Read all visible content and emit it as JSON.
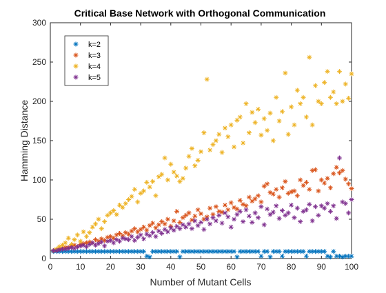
{
  "chart_data": {
    "type": "scatter",
    "title": "Critical Base Network with Orthogonal Communication",
    "xlabel": "Number of Mutant Cells",
    "ylabel": "Hamming Distance",
    "xlim": [
      0,
      100
    ],
    "ylim": [
      0,
      300
    ],
    "xticks": [
      "0",
      "10",
      "20",
      "30",
      "40",
      "50",
      "60",
      "70",
      "80",
      "90",
      "100"
    ],
    "yticks": [
      "0",
      "50",
      "100",
      "150",
      "200",
      "250",
      "300"
    ],
    "marker": "asterisk",
    "grid": false,
    "legend_position": "top-left",
    "series": [
      {
        "name": "k=2",
        "color": "#0072BD",
        "x": [
          1,
          2,
          3,
          4,
          5,
          6,
          7,
          8,
          9,
          10,
          11,
          12,
          13,
          14,
          15,
          16,
          17,
          18,
          19,
          20,
          21,
          22,
          23,
          24,
          25,
          26,
          27,
          28,
          29,
          30,
          31,
          32,
          33,
          34,
          35,
          36,
          37,
          38,
          39,
          40,
          41,
          42,
          43,
          44,
          45,
          46,
          47,
          48,
          49,
          50,
          51,
          52,
          53,
          54,
          55,
          56,
          57,
          58,
          59,
          60,
          61,
          62,
          63,
          64,
          65,
          66,
          67,
          68,
          69,
          70,
          71,
          72,
          73,
          74,
          75,
          76,
          77,
          78,
          79,
          80,
          81,
          82,
          83,
          84,
          85,
          86,
          87,
          88,
          89,
          90,
          91,
          92,
          93,
          94,
          95,
          96,
          97,
          98,
          99,
          100
        ],
        "y": [
          9,
          9,
          9,
          9,
          9,
          9,
          9,
          9,
          9,
          9,
          9,
          9,
          9,
          9,
          9,
          9,
          9,
          9,
          9,
          9,
          9,
          9,
          9,
          9,
          9,
          9,
          9,
          9,
          9,
          9,
          9,
          3,
          2,
          9,
          9,
          9,
          9,
          9,
          9,
          9,
          9,
          9,
          2,
          9,
          9,
          9,
          9,
          9,
          9,
          9,
          9,
          9,
          9,
          9,
          9,
          9,
          9,
          9,
          9,
          9,
          9,
          2,
          9,
          9,
          9,
          9,
          9,
          9,
          9,
          3,
          9,
          9,
          2,
          9,
          9,
          9,
          3,
          9,
          9,
          9,
          9,
          9,
          9,
          9,
          3,
          9,
          9,
          9,
          9,
          9,
          9,
          3,
          2,
          9,
          3,
          3,
          2,
          3,
          3,
          3
        ]
      },
      {
        "name": "k=3",
        "color": "#D95319",
        "x": [
          1,
          2,
          3,
          4,
          5,
          6,
          7,
          8,
          9,
          10,
          11,
          12,
          13,
          14,
          15,
          16,
          17,
          18,
          19,
          20,
          21,
          22,
          23,
          24,
          25,
          26,
          27,
          28,
          29,
          30,
          31,
          32,
          33,
          34,
          35,
          36,
          37,
          38,
          39,
          40,
          41,
          42,
          43,
          44,
          45,
          46,
          47,
          48,
          49,
          50,
          51,
          52,
          53,
          54,
          55,
          56,
          57,
          58,
          59,
          60,
          61,
          62,
          63,
          64,
          65,
          66,
          67,
          68,
          69,
          70,
          71,
          72,
          73,
          74,
          75,
          76,
          77,
          78,
          79,
          80,
          81,
          82,
          83,
          84,
          85,
          86,
          87,
          88,
          89,
          90,
          91,
          92,
          93,
          94,
          95,
          96,
          97,
          98,
          99,
          100
        ],
        "y": [
          10,
          11,
          12,
          13,
          14,
          14,
          16,
          17,
          15,
          18,
          19,
          20,
          21,
          20,
          24,
          22,
          25,
          23,
          27,
          28,
          26,
          30,
          32,
          29,
          33,
          31,
          35,
          38,
          34,
          37,
          40,
          36,
          42,
          45,
          39,
          43,
          47,
          44,
          50,
          41,
          48,
          60,
          46,
          52,
          55,
          58,
          49,
          54,
          62,
          57,
          50,
          53,
          64,
          56,
          66,
          60,
          59,
          68,
          62,
          71,
          65,
          63,
          74,
          69,
          67,
          78,
          73,
          76,
          80,
          72,
          92,
          95,
          84,
          82,
          88,
          78,
          90,
          98,
          83,
          85,
          86,
          80,
          100,
          93,
          97,
          88,
          112,
          113,
          86,
          100,
          96,
          102,
          90,
          108,
          116,
          109,
          112,
          101,
          95,
          89
        ]
      },
      {
        "name": "k=4",
        "color": "#EDB120",
        "x": [
          1,
          2,
          3,
          4,
          5,
          6,
          7,
          8,
          9,
          10,
          11,
          12,
          13,
          14,
          15,
          16,
          17,
          18,
          19,
          20,
          21,
          22,
          23,
          24,
          25,
          26,
          27,
          28,
          29,
          30,
          31,
          32,
          33,
          34,
          35,
          36,
          37,
          38,
          39,
          40,
          41,
          42,
          43,
          44,
          45,
          46,
          47,
          48,
          49,
          50,
          51,
          52,
          53,
          54,
          55,
          56,
          57,
          58,
          59,
          60,
          61,
          62,
          63,
          64,
          65,
          66,
          67,
          68,
          69,
          70,
          71,
          72,
          73,
          74,
          75,
          76,
          77,
          78,
          79,
          80,
          81,
          82,
          83,
          84,
          85,
          86,
          87,
          88,
          89,
          90,
          91,
          92,
          93,
          94,
          95,
          96,
          97,
          98,
          99,
          100
        ],
        "y": [
          10,
          12,
          15,
          17,
          20,
          26,
          18,
          24,
          30,
          22,
          34,
          28,
          33,
          40,
          44,
          50,
          38,
          47,
          55,
          58,
          61,
          56,
          68,
          65,
          70,
          75,
          79,
          88,
          72,
          83,
          86,
          97,
          91,
          98,
          80,
          104,
          107,
          128,
          100,
          120,
          110,
          105,
          98,
          102,
          115,
          130,
          140,
          118,
          125,
          136,
          160,
          228,
          138,
          145,
          150,
          158,
          135,
          166,
          155,
          170,
          142,
          176,
          180,
          147,
          197,
          160,
          186,
          173,
          190,
          157,
          178,
          163,
          185,
          150,
          205,
          175,
          187,
          236,
          158,
          193,
          170,
          214,
          197,
          205,
          180,
          256,
          170,
          220,
          200,
          197,
          224,
          238,
          205,
          212,
          197,
          238,
          200,
          222,
          204,
          235
        ]
      },
      {
        "name": "k=5",
        "color": "#7E2F8E",
        "x": [
          1,
          2,
          3,
          4,
          5,
          6,
          7,
          8,
          9,
          10,
          11,
          12,
          13,
          14,
          15,
          16,
          17,
          18,
          19,
          20,
          21,
          22,
          23,
          24,
          25,
          26,
          27,
          28,
          29,
          30,
          31,
          32,
          33,
          34,
          35,
          36,
          37,
          38,
          39,
          40,
          41,
          42,
          43,
          44,
          45,
          46,
          47,
          48,
          49,
          50,
          51,
          52,
          53,
          54,
          55,
          56,
          57,
          58,
          59,
          60,
          61,
          62,
          63,
          64,
          65,
          66,
          67,
          68,
          69,
          70,
          71,
          72,
          73,
          74,
          75,
          76,
          77,
          78,
          79,
          80,
          81,
          82,
          83,
          84,
          85,
          86,
          87,
          88,
          89,
          90,
          91,
          92,
          93,
          94,
          95,
          96,
          97,
          98,
          99,
          100
        ],
        "y": [
          10,
          10,
          11,
          12,
          12,
          13,
          14,
          13,
          15,
          16,
          17,
          15,
          18,
          20,
          17,
          19,
          21,
          16,
          22,
          23,
          20,
          24,
          22,
          26,
          25,
          24,
          28,
          23,
          27,
          30,
          25,
          31,
          29,
          33,
          28,
          35,
          32,
          37,
          34,
          39,
          36,
          41,
          38,
          43,
          40,
          44,
          38,
          48,
          42,
          46,
          37,
          50,
          44,
          52,
          48,
          55,
          45,
          58,
          53,
          40,
          50,
          56,
          60,
          47,
          62,
          54,
          46,
          58,
          52,
          66,
          43,
          63,
          56,
          59,
          67,
          51,
          61,
          55,
          58,
          68,
          52,
          64,
          47,
          60,
          62,
          69,
          48,
          66,
          55,
          67,
          64,
          70,
          60,
          67,
          51,
          128,
          72,
          70,
          58,
          75
        ]
      }
    ]
  }
}
